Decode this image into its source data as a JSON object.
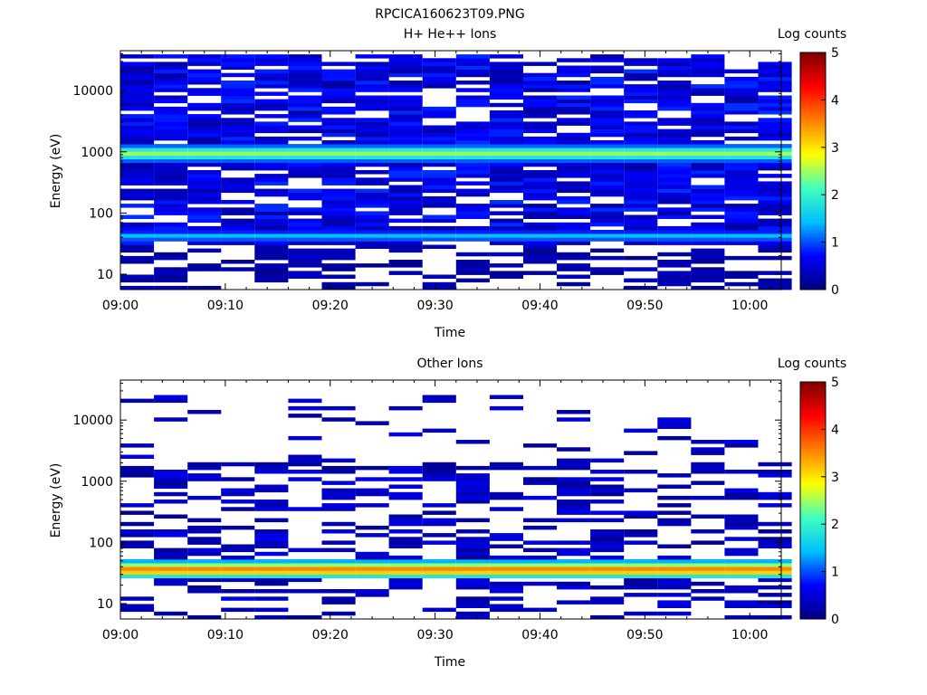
{
  "figure_title": "RPCICA160623T09.PNG",
  "colormap": [
    "#00007f",
    "#0000ff",
    "#00bfff",
    "#40ffbf",
    "#ffff00",
    "#ff8000",
    "#ff0000",
    "#7f0000"
  ],
  "chart_data": [
    {
      "type": "heatmap",
      "title": "H+ He++ Ions",
      "xlabel": "Time",
      "ylabel": "Energy (eV)",
      "x_ticks": [
        "09:00",
        "09:10",
        "09:20",
        "09:30",
        "09:40",
        "09:50",
        "10:00"
      ],
      "x_range_min": [
        0,
        63
      ],
      "y_ticks": [
        "10",
        "100",
        "1000",
        "10000"
      ],
      "y_scale": "log",
      "ylim": [
        5.6,
        45000
      ],
      "colorbar": {
        "label": "Log counts",
        "ticks": [
          "0",
          "1",
          "2",
          "3",
          "4",
          "5"
        ],
        "range": [
          0,
          5
        ]
      },
      "time_bins_min": [
        1.6,
        4.8,
        8.0,
        11.2,
        14.4,
        17.6,
        20.8,
        24.0,
        27.2,
        30.4,
        33.6,
        36.8,
        40.0,
        43.2,
        46.4,
        49.6,
        52.8,
        56.0,
        59.2,
        62.4
      ],
      "features": [
        {
          "description": "broad low-count background",
          "energy_eV": [
            30,
            40000
          ],
          "log_counts": 0.6
        },
        {
          "description": "bright band",
          "energy_eV": [
            650,
            1400
          ],
          "log_counts_peak": 2.5
        },
        {
          "description": "secondary band",
          "energy_eV": [
            35,
            50
          ],
          "log_counts_peak": 1.4
        }
      ]
    },
    {
      "type": "heatmap",
      "title": "Other Ions",
      "xlabel": "Time",
      "ylabel": "Energy (eV)",
      "x_ticks": [
        "09:00",
        "09:10",
        "09:20",
        "09:30",
        "09:40",
        "09:50",
        "10:00"
      ],
      "x_range_min": [
        0,
        63
      ],
      "y_ticks": [
        "10",
        "100",
        "1000",
        "10000"
      ],
      "y_scale": "log",
      "ylim": [
        5.6,
        45000
      ],
      "colorbar": {
        "label": "Log counts",
        "ticks": [
          "0",
          "1",
          "2",
          "3",
          "4",
          "5"
        ],
        "range": [
          0,
          5
        ]
      },
      "time_bins_min": [
        1.6,
        4.8,
        8.0,
        11.2,
        14.4,
        17.6,
        20.8,
        24.0,
        27.2,
        30.4,
        33.6,
        36.8,
        40.0,
        43.2,
        46.4,
        49.6,
        52.8,
        56.0,
        59.2,
        62.4
      ],
      "features": [
        {
          "description": "sparse low-count lines",
          "energy_eV": [
            60,
            25000
          ],
          "log_counts": 0.3
        },
        {
          "description": "bright band",
          "energy_eV": [
            28,
            50
          ],
          "log_counts_peak": 3.6
        },
        {
          "description": "low-energy counts",
          "energy_eV": [
            6,
            25
          ],
          "log_counts": 0.5
        }
      ]
    }
  ]
}
